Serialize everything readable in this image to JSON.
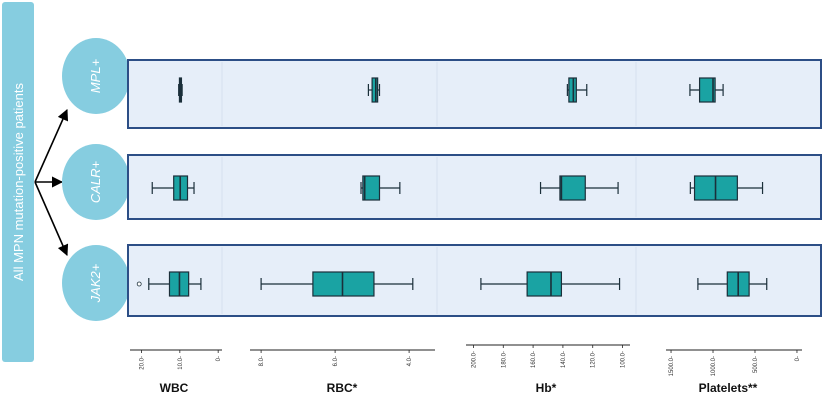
{
  "side_label": "All MPN mutation-positive patients",
  "groups": [
    "MPL+",
    "CALR+",
    "JAK2+"
  ],
  "colors": {
    "side_box": "#86cde0",
    "oval": "#86cde0",
    "panel_border": "#2c4e86",
    "panel_fill": "#e6eef9",
    "box_fill": "#1aa3a3",
    "box_stroke": "#1b2f3a"
  },
  "chart_data": [
    {
      "type": "boxplot",
      "title": "WBC",
      "axis_reversed": true,
      "xlim": [
        23,
        -1
      ],
      "ticks": [
        20,
        10,
        0
      ],
      "tick_labels": [
        "20.0-",
        "10.0-",
        "0-"
      ],
      "series": [
        {
          "group": "MPL+",
          "whisker_low": 9.4,
          "q1": 9.6,
          "median": 9.9,
          "q3": 10.1,
          "whisker_high": 10.3
        },
        {
          "group": "CALR+",
          "whisker_low": 6.3,
          "q1": 8.0,
          "median": 9.9,
          "q3": 11.6,
          "whisker_high": 17.2
        },
        {
          "group": "JAK2+",
          "whisker_low": 4.5,
          "q1": 7.7,
          "median": 10.1,
          "q3": 12.7,
          "whisker_high": 18.1,
          "outliers": [
            20.6
          ]
        }
      ]
    },
    {
      "type": "boxplot",
      "title": "RBC*",
      "axis_reversed": true,
      "xlim": [
        8.3,
        3.3
      ],
      "ticks": [
        8,
        6,
        4
      ],
      "tick_labels": [
        "8.0-",
        "6.0-",
        "4.0-"
      ],
      "series": [
        {
          "group": "MPL+",
          "whisker_low": 4.8,
          "q1": 4.85,
          "median": 4.9,
          "q3": 5.0,
          "whisker_high": 5.1
        },
        {
          "group": "CALR+",
          "whisker_low": 4.25,
          "q1": 4.8,
          "median": 5.2,
          "q3": 5.25,
          "whisker_high": 5.3
        },
        {
          "group": "JAK2+",
          "whisker_low": 3.9,
          "q1": 4.95,
          "median": 5.8,
          "q3": 6.6,
          "whisker_high": 8.0
        }
      ]
    },
    {
      "type": "boxplot",
      "title": "Hb*",
      "axis_reversed": true,
      "xlim": [
        205,
        95
      ],
      "ticks": [
        200,
        180,
        160,
        140,
        120,
        100
      ],
      "tick_labels": [
        "200.0-",
        "180.0-",
        "160.0-",
        "140.0-",
        "120.0-",
        "100.0-"
      ],
      "series": [
        {
          "group": "MPL+",
          "whisker_low": 124,
          "q1": 131,
          "median": 133,
          "q3": 136,
          "whisker_high": 137
        },
        {
          "group": "CALR+",
          "whisker_low": 103,
          "q1": 125,
          "median": 141,
          "q3": 142,
          "whisker_high": 155
        },
        {
          "group": "JAK2+",
          "whisker_low": 102,
          "q1": 141,
          "median": 148,
          "q3": 164,
          "whisker_high": 195
        }
      ]
    },
    {
      "type": "boxplot",
      "title": "Platelets**",
      "axis_reversed": true,
      "xlim": [
        1560,
        -60
      ],
      "ticks": [
        1500,
        1000,
        500,
        0
      ],
      "tick_labels": [
        "1500.0-",
        "1000.0-",
        "500.0-",
        "0-"
      ],
      "series": [
        {
          "group": "MPL+",
          "whisker_low": 880,
          "q1": 975,
          "median": 1000,
          "q3": 1160,
          "whisker_high": 1275
        },
        {
          "group": "CALR+",
          "whisker_low": 410,
          "q1": 710,
          "median": 970,
          "q3": 1220,
          "whisker_high": 1270
        },
        {
          "group": "JAK2+",
          "whisker_low": 360,
          "q1": 570,
          "median": 700,
          "q3": 830,
          "whisker_high": 1180
        }
      ]
    }
  ]
}
